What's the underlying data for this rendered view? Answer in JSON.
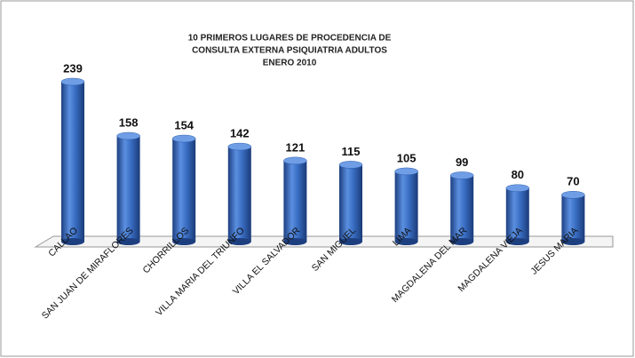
{
  "chart_data": {
    "type": "bar",
    "title": [
      "10 PRIMEROS LUGARES DE PROCEDENCIA DE",
      "CONSULTA EXTERNA PSIQUIATRIA ADULTOS",
      "ENERO 2010"
    ],
    "categories": [
      "CALLAO",
      "SAN JUAN DE MIRAFLORES",
      "CHORRILLOS",
      "VILLA MARIA DEL TRIUNFO",
      "VILLA EL SALVADOR",
      "SAN MIGUEL",
      "LIMA",
      "MAGDALENA DEL MAR",
      "MAGDALENA VIEJA",
      "JESUS MARIA"
    ],
    "values": [
      239,
      158,
      154,
      142,
      121,
      115,
      105,
      99,
      80,
      70
    ],
    "color": "#3a6fc4"
  }
}
